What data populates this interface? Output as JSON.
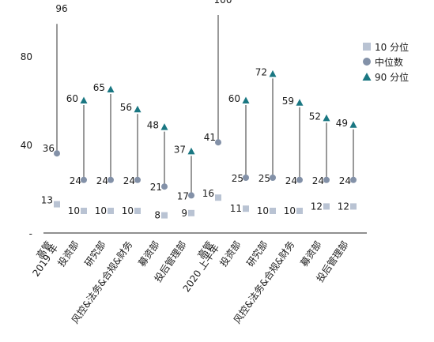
{
  "chart_data": {
    "type": "scatter",
    "title": "",
    "xlabel": "",
    "ylabel": "",
    "ylim": [
      0,
      100
    ],
    "y_ticks": [
      "-",
      "40",
      "80"
    ],
    "y_tick_values": [
      0,
      40,
      80
    ],
    "groups": [
      "2019 年",
      "2020 上半年"
    ],
    "categories": [
      "高管",
      "投资部",
      "研究部",
      "风控&法务&合规&财务",
      "募资部",
      "投后管理部",
      "高管",
      "投资部",
      "研究部",
      "风控&法务&合规&财务",
      "募资部",
      "投后管理部"
    ],
    "series": [
      {
        "name": "10 分位",
        "marker": "square",
        "color": "#b9c3d3",
        "values": [
          13,
          10,
          10,
          10,
          8,
          9,
          16,
          11,
          10,
          10,
          12,
          12
        ]
      },
      {
        "name": "中位数",
        "marker": "circle",
        "color": "#8391a8",
        "values": [
          36,
          24,
          24,
          24,
          21,
          17,
          41,
          25,
          25,
          24,
          24,
          24
        ]
      },
      {
        "name": "90 分位",
        "marker": "triangle",
        "color": "#1a7782",
        "values": [
          96,
          60,
          65,
          56,
          48,
          37,
          100,
          60,
          72,
          59,
          52,
          49
        ]
      }
    ],
    "legend_position": "right",
    "grid": false
  }
}
